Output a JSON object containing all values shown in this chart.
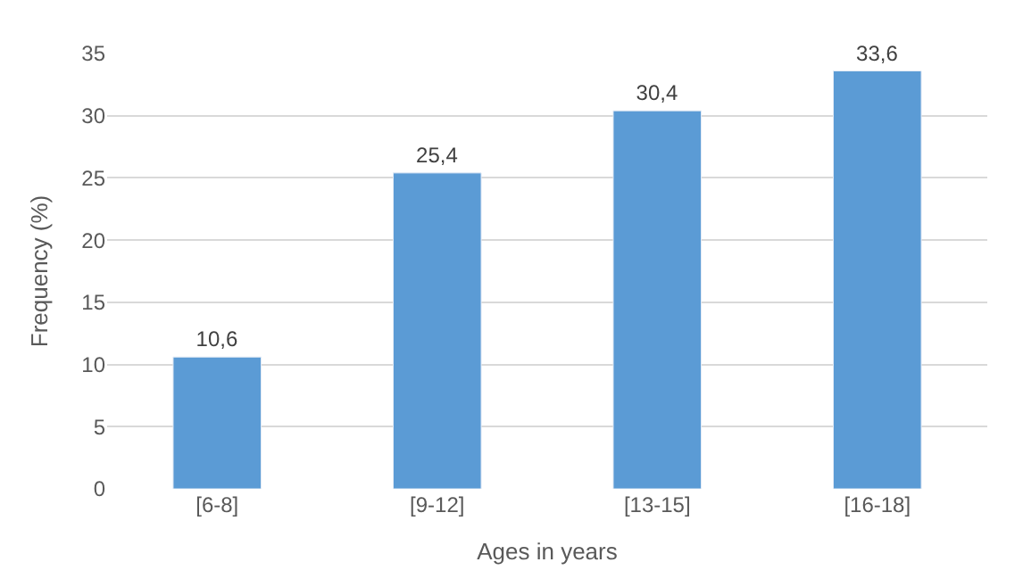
{
  "chart_data": {
    "type": "bar",
    "xlabel": "Ages in years",
    "ylabel": "Frequency (%)",
    "categories": [
      "[6-8]",
      "[9-12]",
      "[13-15]",
      "[16-18]"
    ],
    "values": [
      10.6,
      25.4,
      30.4,
      33.6
    ],
    "value_labels": [
      "10,6",
      "25,4",
      "30,4",
      "33,6"
    ],
    "color": "#5b9bd5",
    "ylim": [
      0,
      35
    ],
    "yticks": [
      0,
      5,
      10,
      15,
      20,
      25,
      30,
      35
    ],
    "grid": "y"
  }
}
